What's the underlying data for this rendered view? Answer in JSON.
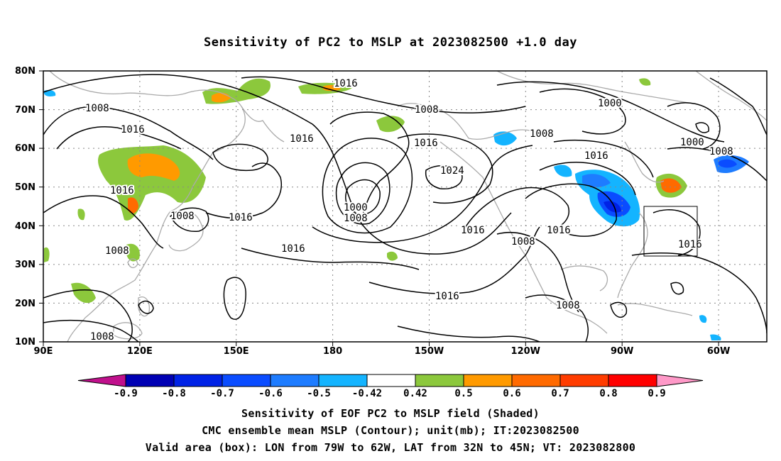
{
  "title": "Sensitivity of PC2 to MSLP at 2023082500 +1.0 day",
  "map": {
    "lat_labels": [
      "80N",
      "70N",
      "60N",
      "50N",
      "40N",
      "30N",
      "20N",
      "10N"
    ],
    "lon_labels": [
      "90E",
      "120E",
      "150E",
      "180",
      "150W",
      "120W",
      "90W",
      "60W"
    ],
    "contour_labels": [
      {
        "v": "1016"
      },
      {
        "v": "1008"
      },
      {
        "v": "1016"
      },
      {
        "v": "1016"
      },
      {
        "v": "1008"
      },
      {
        "v": "1008"
      },
      {
        "v": "1016"
      },
      {
        "v": "1008"
      },
      {
        "v": "1016"
      },
      {
        "v": "1008"
      },
      {
        "v": "1000"
      },
      {
        "v": "1008"
      },
      {
        "v": "1016"
      },
      {
        "v": "1024"
      },
      {
        "v": "1016"
      },
      {
        "v": "1016"
      },
      {
        "v": "1008"
      },
      {
        "v": "1008"
      },
      {
        "v": "1016"
      },
      {
        "v": "1000"
      },
      {
        "v": "1016"
      },
      {
        "v": "1000"
      },
      {
        "v": "1008"
      },
      {
        "v": "1016"
      },
      {
        "v": "1016"
      },
      {
        "v": "1008"
      },
      {
        "v": "1016"
      }
    ],
    "box": {
      "lon_from": "79W",
      "lon_to": "62W",
      "lat_from": "32N",
      "lat_to": "45N"
    }
  },
  "colorbar": {
    "labels": [
      "-0.9",
      "-0.8",
      "-0.7",
      "-0.6",
      "-0.5",
      "-0.42",
      "0.42",
      "0.5",
      "0.6",
      "0.7",
      "0.8",
      "0.9"
    ],
    "colors": [
      "#0000b4",
      "#0022e6",
      "#0a4cff",
      "#1e7cff",
      "#14b4ff",
      "#ffffff",
      "#8cc83c",
      "#ff9a00",
      "#ff6a00",
      "#ff3c00",
      "#ff0000"
    ],
    "low_end_color": "#c0108c",
    "high_end_color": "#ff99c8"
  },
  "captions": {
    "line1": "Sensitivity of EOF PC2 to MSLP field (Shaded)",
    "line2": "CMC ensemble mean MSLP (Contour); unit(mb); IT:2023082500",
    "line3": "Valid area (box): LON from 79W to 62W, LAT from 32N to 45N; VT: 2023082800"
  }
}
